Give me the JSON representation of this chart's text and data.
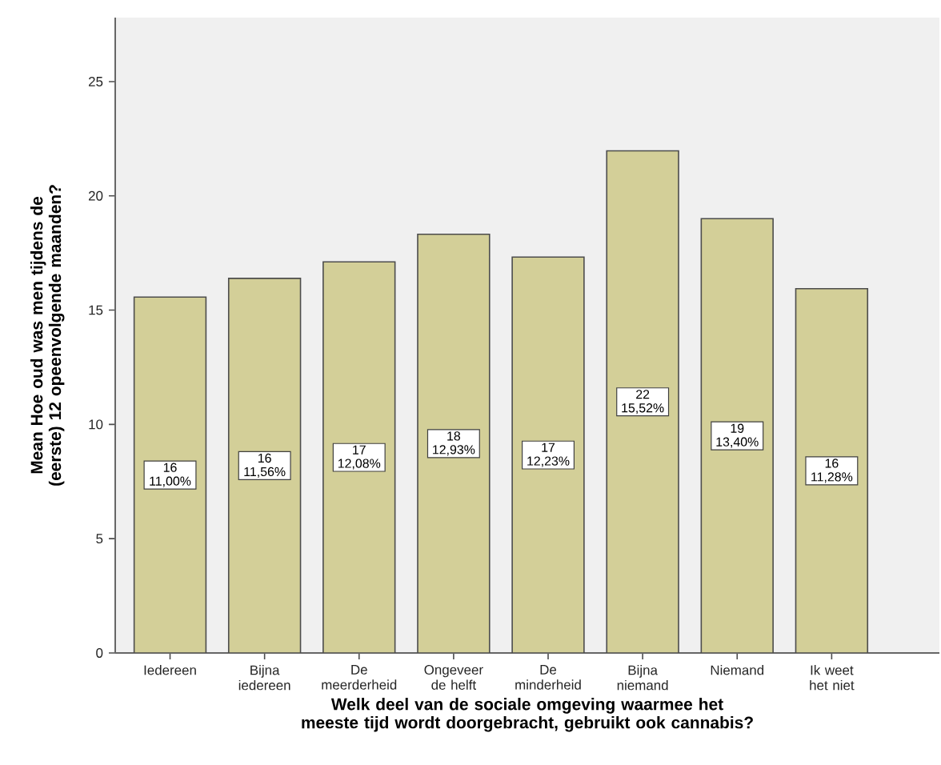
{
  "chart_data": {
    "type": "bar",
    "xlabel": "Welk deel van de sociale omgeving waarmee het meeste tijd wordt doorgebracht, gebruikt ook cannabis?",
    "ylabel": "Mean Hoe oud was men tijdens de (eerste) 12 opeenvolgende maanden?",
    "categories": [
      "Iedereen",
      "Bijna iedereen",
      "De meerderheid",
      "Ongeveer de helft",
      "De minderheid",
      "Bijna niemand",
      "Niemand",
      "Ik weet het niet"
    ],
    "values": [
      15.57,
      16.39,
      17.11,
      18.32,
      17.32,
      21.97,
      19.0,
      15.94
    ],
    "value_labels": [
      "16 11,00%",
      "16 11,56%",
      "17 12,08%",
      "18 12,93%",
      "17 12,23%",
      "22 15,52%",
      "19 13,40%",
      "16 11,28%"
    ],
    "color": "#d3cf98",
    "ylim": [
      0,
      27.8
    ],
    "yticks": [
      0,
      5,
      10,
      15,
      20,
      25
    ],
    "grid": false
  }
}
